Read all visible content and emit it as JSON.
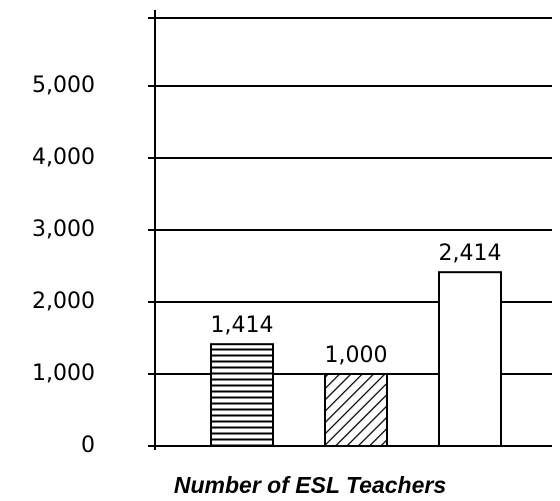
{
  "chart_data": {
    "type": "bar",
    "x_label": "Number of ESL Teachers",
    "categories": [
      null,
      null,
      null
    ],
    "values": [
      1414,
      1000,
      2414
    ],
    "value_labels": [
      "1,414",
      "1,000",
      "2,414"
    ],
    "patterns": [
      "horizontal",
      "diagonal",
      "none"
    ],
    "color": "#000000",
    "ylim": [
      0,
      6000
    ],
    "yticks": [
      0,
      {
        "value": 1000,
        "label": "1,000"
      },
      {
        "value": 2000,
        "label": "2,000"
      },
      {
        "value": 3000,
        "label": "3,000"
      },
      {
        "value": 4000,
        "label": "4,000"
      },
      {
        "value": 5000,
        "label": "5,000"
      }
    ],
    "grid": true
  }
}
